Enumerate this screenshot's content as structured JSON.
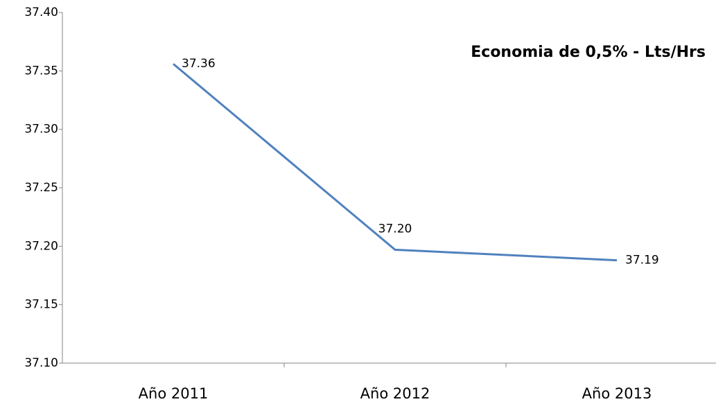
{
  "chart_data": {
    "type": "line",
    "title": "Economia de 0,5% - Lts/Hrs",
    "categories": [
      "Año 2011",
      "Año 2012",
      "Año 2013"
    ],
    "series": [
      {
        "name": "Lts/Hrs",
        "color": "#4f81bd",
        "values": [
          37.356,
          37.197,
          37.188
        ],
        "value_labels": [
          "37.36",
          "37.20",
          "37.19"
        ]
      }
    ],
    "ylim": [
      37.1,
      37.4
    ],
    "yticks": [
      {
        "value": 37.1,
        "label": "37.10"
      },
      {
        "value": 37.15,
        "label": "37.15"
      },
      {
        "value": 37.2,
        "label": "37.20"
      },
      {
        "value": 37.25,
        "label": "37.25"
      },
      {
        "value": 37.3,
        "label": "37.30"
      },
      {
        "value": 37.35,
        "label": "37.35"
      },
      {
        "value": 37.4,
        "label": "37.40"
      }
    ],
    "grid": false
  }
}
